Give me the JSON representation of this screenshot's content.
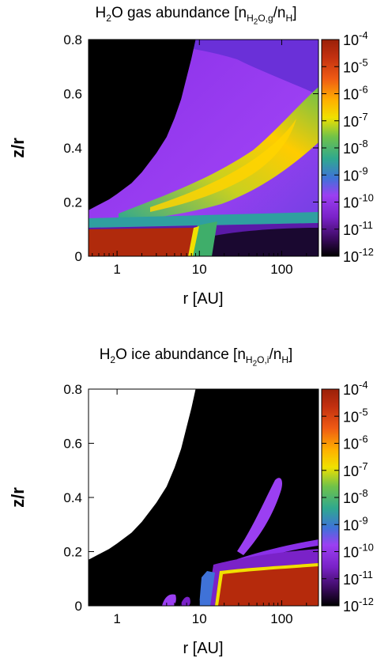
{
  "chart_data": [
    {
      "type": "heatmap",
      "title": "H2O gas abundance [nH2O,g/nH]",
      "title_parts": {
        "species": "H",
        "species_sub": "2",
        "species_rest": "O gas abundance [n",
        "n_sub": "H",
        "n_sub_sub": "2",
        "n_sub_rest": "O,g",
        "den": "/n",
        "den_sub": "H",
        "close": "]"
      },
      "xlabel": "r [AU]",
      "ylabel": "z/r",
      "xscale": "log",
      "xlim": [
        0.45,
        280
      ],
      "ylim": [
        0,
        0.8
      ],
      "xticks": [
        {
          "value": 1,
          "label": "1"
        },
        {
          "value": 10,
          "label": "10"
        },
        {
          "value": 100,
          "label": "100"
        }
      ],
      "yticks": [
        {
          "value": 0,
          "label": "0"
        },
        {
          "value": 0.2,
          "label": "0.2"
        },
        {
          "value": 0.4,
          "label": "0.4"
        },
        {
          "value": 0.6,
          "label": "0.6"
        },
        {
          "value": 0.8,
          "label": "0.8"
        }
      ],
      "colorbar": {
        "scale": "log",
        "range": [
          -12,
          -4
        ],
        "ticks": [
          {
            "exp": -4,
            "base": "10",
            "sup": "-4"
          },
          {
            "exp": -5,
            "base": "10",
            "sup": "-5"
          },
          {
            "exp": -6,
            "base": "10",
            "sup": "-6"
          },
          {
            "exp": -7,
            "base": "10",
            "sup": "-7"
          },
          {
            "exp": -8,
            "base": "10",
            "sup": "-8"
          },
          {
            "exp": -9,
            "base": "10",
            "sup": "-9"
          },
          {
            "exp": -10,
            "base": "10",
            "sup": "-10"
          },
          {
            "exp": -11,
            "base": "10",
            "sup": "-11"
          },
          {
            "exp": -12,
            "base": "10",
            "sup": "-12"
          }
        ]
      },
      "colormap": [
        "#000000",
        "#3a0a5e",
        "#7a22c8",
        "#9b3ff2",
        "#3f72d8",
        "#2fa88f",
        "#6fc24a",
        "#f0e000",
        "#ffb000",
        "#ee5a14",
        "#c23010",
        "#9a2008"
      ],
      "boundary_zr": [
        {
          "r": 0.45,
          "zr": 0.17
        },
        {
          "r": 0.6,
          "zr": 0.19
        },
        {
          "r": 0.8,
          "zr": 0.21
        },
        {
          "r": 1,
          "zr": 0.23
        },
        {
          "r": 1.5,
          "zr": 0.27
        },
        {
          "r": 2,
          "zr": 0.31
        },
        {
          "r": 3,
          "zr": 0.38
        },
        {
          "r": 4,
          "zr": 0.44
        },
        {
          "r": 5,
          "zr": 0.51
        },
        {
          "r": 6,
          "zr": 0.58
        },
        {
          "r": 7,
          "zr": 0.66
        },
        {
          "r": 8,
          "zr": 0.73
        },
        {
          "r": 9,
          "zr": 0.8
        }
      ],
      "regions": [
        {
          "name": "midplane-high",
          "log_abundance": -4.3,
          "r_range": [
            0.45,
            8
          ],
          "zr_range": [
            0,
            0.12
          ]
        },
        {
          "name": "layer-band",
          "log_abundance": -7.5,
          "r_range": [
            0.45,
            280
          ],
          "zr_range": [
            0.12,
            0.16
          ]
        },
        {
          "name": "warm-layer-peak",
          "log_abundance": -7.0,
          "r_range": [
            5,
            280
          ],
          "zr_range": [
            0.2,
            0.5
          ]
        },
        {
          "name": "outer-midplane-low",
          "log_abundance": -11.5,
          "r_range": [
            15,
            280
          ],
          "zr_range": [
            0,
            0.1
          ]
        }
      ]
    },
    {
      "type": "heatmap",
      "title": "H2O ice abundance [nH2O,i/nH]",
      "title_parts": {
        "species": "H",
        "species_sub": "2",
        "species_rest": "O ice abundance [n",
        "n_sub": "H",
        "n_sub_sub": "2",
        "n_sub_rest": "O,i",
        "den": "/n",
        "den_sub": "H",
        "close": "]"
      },
      "xlabel": "r [AU]",
      "ylabel": "z/r",
      "xscale": "log",
      "xlim": [
        0.45,
        280
      ],
      "ylim": [
        0,
        0.8
      ],
      "xticks": [
        {
          "value": 1,
          "label": "1"
        },
        {
          "value": 10,
          "label": "10"
        },
        {
          "value": 100,
          "label": "100"
        }
      ],
      "yticks": [
        {
          "value": 0,
          "label": "0"
        },
        {
          "value": 0.2,
          "label": "0.2"
        },
        {
          "value": 0.4,
          "label": "0.4"
        },
        {
          "value": 0.6,
          "label": "0.6"
        },
        {
          "value": 0.8,
          "label": "0.8"
        }
      ],
      "colorbar": {
        "scale": "log",
        "range": [
          -12,
          -4
        ],
        "ticks": [
          {
            "exp": -4,
            "base": "10",
            "sup": "-4"
          },
          {
            "exp": -5,
            "base": "10",
            "sup": "-5"
          },
          {
            "exp": -6,
            "base": "10",
            "sup": "-6"
          },
          {
            "exp": -7,
            "base": "10",
            "sup": "-7"
          },
          {
            "exp": -8,
            "base": "10",
            "sup": "-8"
          },
          {
            "exp": -9,
            "base": "10",
            "sup": "-9"
          },
          {
            "exp": -10,
            "base": "10",
            "sup": "-10"
          },
          {
            "exp": -11,
            "base": "10",
            "sup": "-11"
          },
          {
            "exp": -12,
            "base": "10",
            "sup": "-12"
          }
        ]
      },
      "colormap": [
        "#000000",
        "#3a0a5e",
        "#7a22c8",
        "#9b3ff2",
        "#3f72d8",
        "#2fa88f",
        "#6fc24a",
        "#f0e000",
        "#ffb000",
        "#ee5a14",
        "#c23010",
        "#9a2008"
      ],
      "boundary_zr": [
        {
          "r": 0.45,
          "zr": 0.17
        },
        {
          "r": 0.6,
          "zr": 0.19
        },
        {
          "r": 0.8,
          "zr": 0.21
        },
        {
          "r": 1,
          "zr": 0.23
        },
        {
          "r": 1.5,
          "zr": 0.27
        },
        {
          "r": 2,
          "zr": 0.31
        },
        {
          "r": 3,
          "zr": 0.38
        },
        {
          "r": 4,
          "zr": 0.44
        },
        {
          "r": 5,
          "zr": 0.51
        },
        {
          "r": 6,
          "zr": 0.58
        },
        {
          "r": 7,
          "zr": 0.66
        },
        {
          "r": 8,
          "zr": 0.73
        },
        {
          "r": 9,
          "zr": 0.8
        }
      ],
      "regions": [
        {
          "name": "outer-ice-midplane",
          "log_abundance": -4.3,
          "r_range": [
            14,
            280
          ],
          "zr_range": [
            0,
            0.17
          ]
        },
        {
          "name": "ice-lobe",
          "log_abundance": -9.0,
          "r_range": [
            30,
            120
          ],
          "zr_range": [
            0.22,
            0.43
          ]
        },
        {
          "name": "ice-upper-layer",
          "log_abundance": -9.5,
          "r_range": [
            40,
            280
          ],
          "zr_range": [
            0.18,
            0.21
          ]
        },
        {
          "name": "inner-ice-patch",
          "log_abundance": -9.0,
          "r_range": [
            3.5,
            6
          ],
          "zr_range": [
            0,
            0.04
          ]
        },
        {
          "name": "snowline-strip",
          "log_abundance": -9.0,
          "r_range": [
            9,
            13
          ],
          "zr_range": [
            0,
            0.14
          ]
        }
      ]
    }
  ]
}
